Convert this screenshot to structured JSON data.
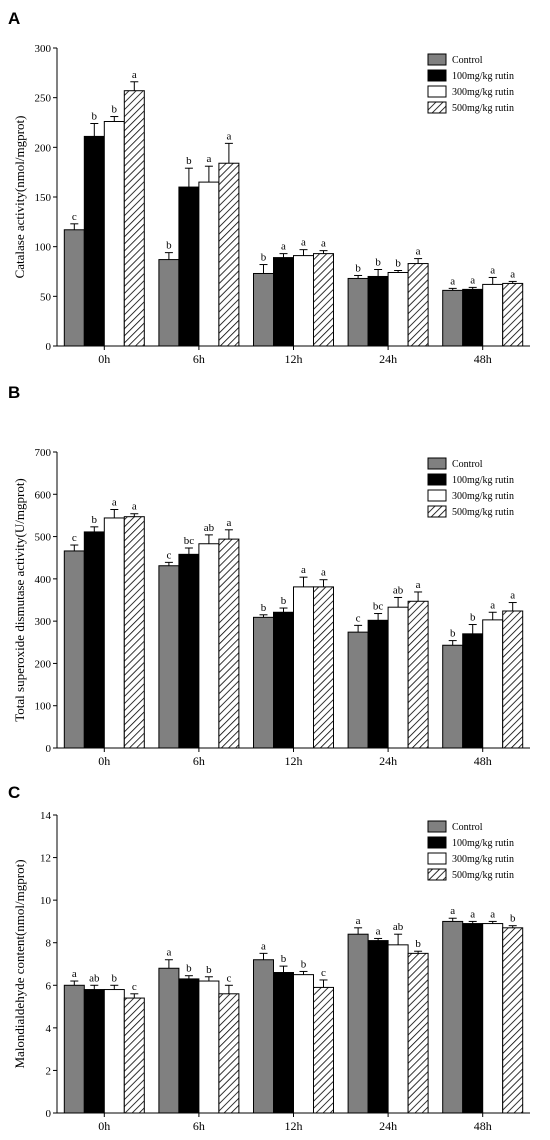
{
  "legend": [
    "Control",
    "100mg/kg rutin",
    "300mg/kg rutin",
    "500mg/kg rutin"
  ],
  "series_style": [
    {
      "fill": "#808080",
      "pattern": "solid"
    },
    {
      "fill": "#000000",
      "pattern": "solid"
    },
    {
      "fill": "#ffffff",
      "pattern": "solid"
    },
    {
      "fill": "#ffffff",
      "pattern": "hatch"
    }
  ],
  "chart_data": [
    {
      "panel": "A",
      "type": "bar",
      "ylabel": "Catalase activity(nmol/mgprot)",
      "ylim": [
        0,
        300
      ],
      "yticks": [
        0,
        50,
        100,
        150,
        200,
        250,
        300
      ],
      "categories": [
        "0h",
        "6h",
        "12h",
        "24h",
        "48h"
      ],
      "series": [
        {
          "name": "Control",
          "values": [
            117,
            87,
            73,
            68,
            56
          ],
          "errors": [
            6,
            7,
            9,
            3,
            2
          ],
          "letters": [
            "c",
            "b",
            "b",
            "b",
            "a"
          ]
        },
        {
          "name": "100mg/kg rutin",
          "values": [
            211,
            160,
            89,
            70,
            57
          ],
          "errors": [
            13,
            19,
            4,
            7,
            2
          ],
          "letters": [
            "b",
            "b",
            "a",
            "b",
            "a"
          ]
        },
        {
          "name": "300mg/kg rutin",
          "values": [
            226,
            165,
            91,
            74,
            62
          ],
          "errors": [
            5,
            16,
            6,
            2,
            7
          ],
          "letters": [
            "b",
            "a",
            "a",
            "b",
            "a"
          ]
        },
        {
          "name": "500mg/kg rutin",
          "values": [
            257,
            184,
            93,
            83,
            63
          ],
          "errors": [
            9,
            20,
            3,
            5,
            2
          ],
          "letters": [
            "a",
            "a",
            "a",
            "a",
            "a"
          ]
        }
      ]
    },
    {
      "panel": "B",
      "type": "bar",
      "ylabel": "Total superoxide dismutase activity(U/mgprot)",
      "ylim": [
        0,
        700
      ],
      "yticks": [
        0,
        100,
        200,
        300,
        400,
        500,
        600,
        700
      ],
      "categories": [
        "0h",
        "6h",
        "12h",
        "24h",
        "48h"
      ],
      "series": [
        {
          "name": "Control",
          "values": [
            466,
            431,
            309,
            274,
            243
          ],
          "errors": [
            14,
            8,
            6,
            16,
            11
          ],
          "letters": [
            "c",
            "c",
            "b",
            "c",
            "b"
          ]
        },
        {
          "name": "100mg/kg rutin",
          "values": [
            511,
            458,
            321,
            302,
            270
          ],
          "errors": [
            12,
            15,
            10,
            16,
            22
          ],
          "letters": [
            "b",
            "bc",
            "b",
            "bc",
            "b"
          ]
        },
        {
          "name": "300mg/kg rutin",
          "values": [
            544,
            483,
            381,
            333,
            303
          ],
          "errors": [
            20,
            21,
            23,
            23,
            18
          ],
          "letters": [
            "a",
            "ab",
            "a",
            "ab",
            "a"
          ]
        },
        {
          "name": "500mg/kg rutin",
          "values": [
            547,
            494,
            381,
            347,
            324
          ],
          "errors": [
            7,
            22,
            17,
            22,
            20
          ],
          "letters": [
            "a",
            "a",
            "a",
            "a",
            "a"
          ]
        }
      ]
    },
    {
      "panel": "C",
      "type": "bar",
      "ylabel": "Malondialdehyde content(nmol/mgprot)",
      "ylim": [
        0,
        14
      ],
      "yticks": [
        0,
        2,
        4,
        6,
        8,
        10,
        12,
        14
      ],
      "categories": [
        "0h",
        "6h",
        "12h",
        "24h",
        "48h"
      ],
      "series": [
        {
          "name": "Control",
          "values": [
            6.0,
            6.8,
            7.2,
            8.4,
            9.0
          ],
          "errors": [
            0.2,
            0.4,
            0.3,
            0.3,
            0.15
          ],
          "letters": [
            "a",
            "a",
            "a",
            "a",
            "a"
          ]
        },
        {
          "name": "100mg/kg rutin",
          "values": [
            5.8,
            6.3,
            6.6,
            8.1,
            8.9
          ],
          "errors": [
            0.2,
            0.15,
            0.3,
            0.1,
            0.1
          ],
          "letters": [
            "ab",
            "b",
            "b",
            "a",
            "a"
          ]
        },
        {
          "name": "300mg/kg rutin",
          "values": [
            5.8,
            6.2,
            6.5,
            7.9,
            8.9
          ],
          "errors": [
            0.2,
            0.2,
            0.15,
            0.5,
            0.1
          ],
          "letters": [
            "b",
            "b",
            "b",
            "ab",
            "a"
          ]
        },
        {
          "name": "500mg/kg rutin",
          "values": [
            5.4,
            5.6,
            5.9,
            7.5,
            8.7
          ],
          "errors": [
            0.2,
            0.4,
            0.35,
            0.1,
            0.1
          ],
          "letters": [
            "c",
            "c",
            "c",
            "b",
            "b"
          ]
        }
      ]
    }
  ]
}
